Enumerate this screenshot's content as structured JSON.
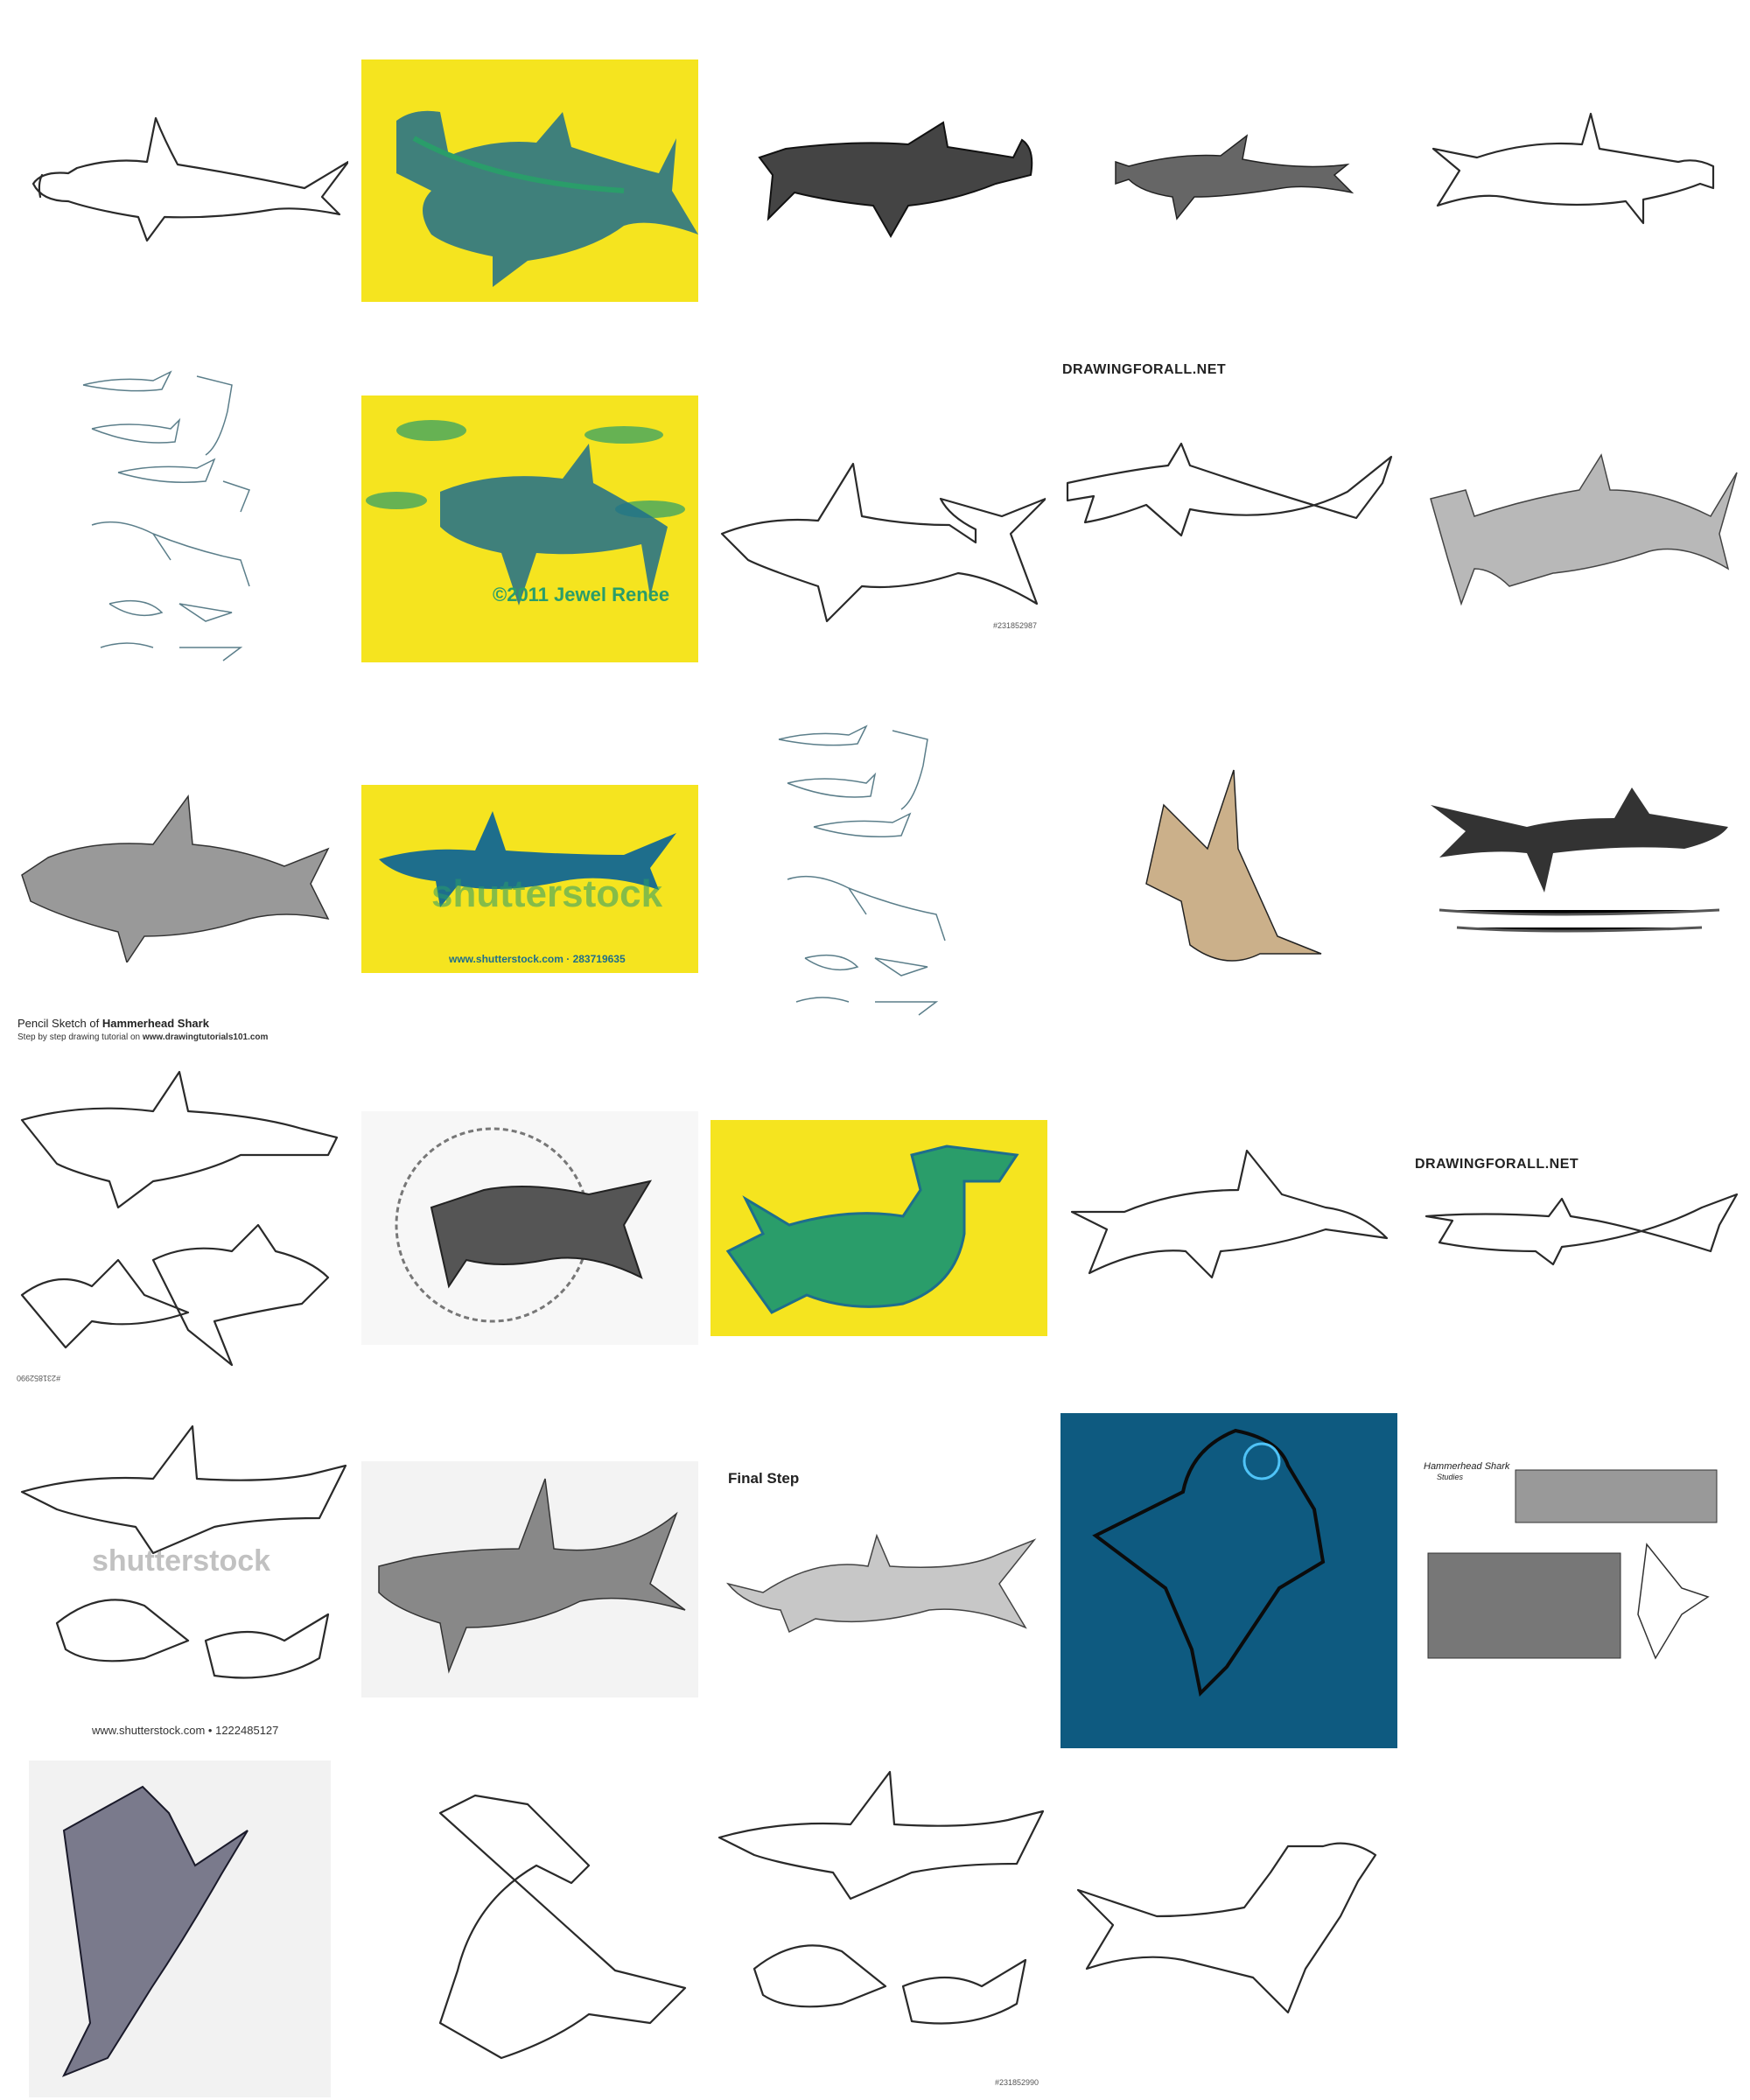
{
  "grid_title": "",
  "tiles": [
    {
      "id": "r1c1",
      "alt": "Hammerhead shark line sketch"
    },
    {
      "id": "r1c2",
      "alt": "Hammerhead shark on yellow"
    },
    {
      "id": "r1c3",
      "alt": "Hammerhead shark ink drawing"
    },
    {
      "id": "r1c4",
      "alt": "Hammerhead shark small sketch"
    },
    {
      "id": "r1c5",
      "alt": "Hammerhead shark outline"
    },
    {
      "id": "r2c1",
      "alt": "Hammerhead shark study sheet"
    },
    {
      "id": "r2c2",
      "alt": "Hammerhead school on yellow"
    },
    {
      "id": "r2c3",
      "alt": "Hammerhead outline stock"
    },
    {
      "id": "r2c4",
      "alt": "Drawingforall hammerhead"
    },
    {
      "id": "r2c5",
      "alt": "Hammerhead pencil drawing"
    },
    {
      "id": "r3c1",
      "alt": "Hammerhead pencil sketch"
    },
    {
      "id": "r3c2",
      "alt": "Hammerhead on yellow stock"
    },
    {
      "id": "r3c3",
      "alt": "Hammerhead study sheet"
    },
    {
      "id": "r3c4",
      "alt": "Hammerhead stippled drawing"
    },
    {
      "id": "r3c5",
      "alt": "Hammerhead ink over waves"
    },
    {
      "id": "r4c1",
      "alt": "Cartoon hammerheads"
    },
    {
      "id": "r4c2",
      "alt": "Hammerhead with rope"
    },
    {
      "id": "r4c3",
      "alt": "Hammerhead on yellow"
    },
    {
      "id": "r4c4",
      "alt": "Hammerhead line drawing"
    },
    {
      "id": "r4c5",
      "alt": "Drawingforall hammerhead"
    },
    {
      "id": "r5c1",
      "alt": "Cartoon hammerheads stock"
    },
    {
      "id": "r5c2",
      "alt": "Hammerhead pencil"
    },
    {
      "id": "r5c3",
      "alt": "Final step hammerhead"
    },
    {
      "id": "r5c4",
      "alt": "Hammerhead on blue"
    },
    {
      "id": "r5c5",
      "alt": "Hammerhead studies"
    },
    {
      "id": "r6c1",
      "alt": "Hammerhead embroidery"
    },
    {
      "id": "r6c2",
      "alt": "Cartoon hammerhead"
    },
    {
      "id": "r6c3",
      "alt": "Cartoon hammerheads outline"
    },
    {
      "id": "r6c4",
      "alt": "Hammerhead line art"
    }
  ],
  "captions": {
    "drawingforall_1": "DRAWINGFORALL.NET",
    "drawingforall_2": "DRAWINGFORALL.NET",
    "stock_id_1": "#231852987",
    "stock_id_2": "#231852990",
    "stock_id_3": "#231852990",
    "copyright_jewel": "©2011 Jewel Renee",
    "shutterstock_wm": "shutterstock",
    "shutterstock_url_1": "www.shutterstock.com · 283719635",
    "shutterstock_url_2": "www.shutterstock.com • 1222485127",
    "pencil_sketch_prefix": "Pencil Sketch of ",
    "pencil_sketch_bold": "Hammerhead Shark",
    "pencil_sketch_sub_prefix": "Step by step drawing tutorial on ",
    "pencil_sketch_sub_url": "www.drawingtutorials101.com",
    "final_step": "Final Step",
    "studies_title": "Hammerhead Shark",
    "studies_sub": "Studies"
  },
  "colors": {
    "yellow_bg": "#f5e41f",
    "teal_blue_ink": "#1e6e8c",
    "green_ink": "#2a9d6a",
    "dark_blue_bg": "#0e5a80"
  }
}
